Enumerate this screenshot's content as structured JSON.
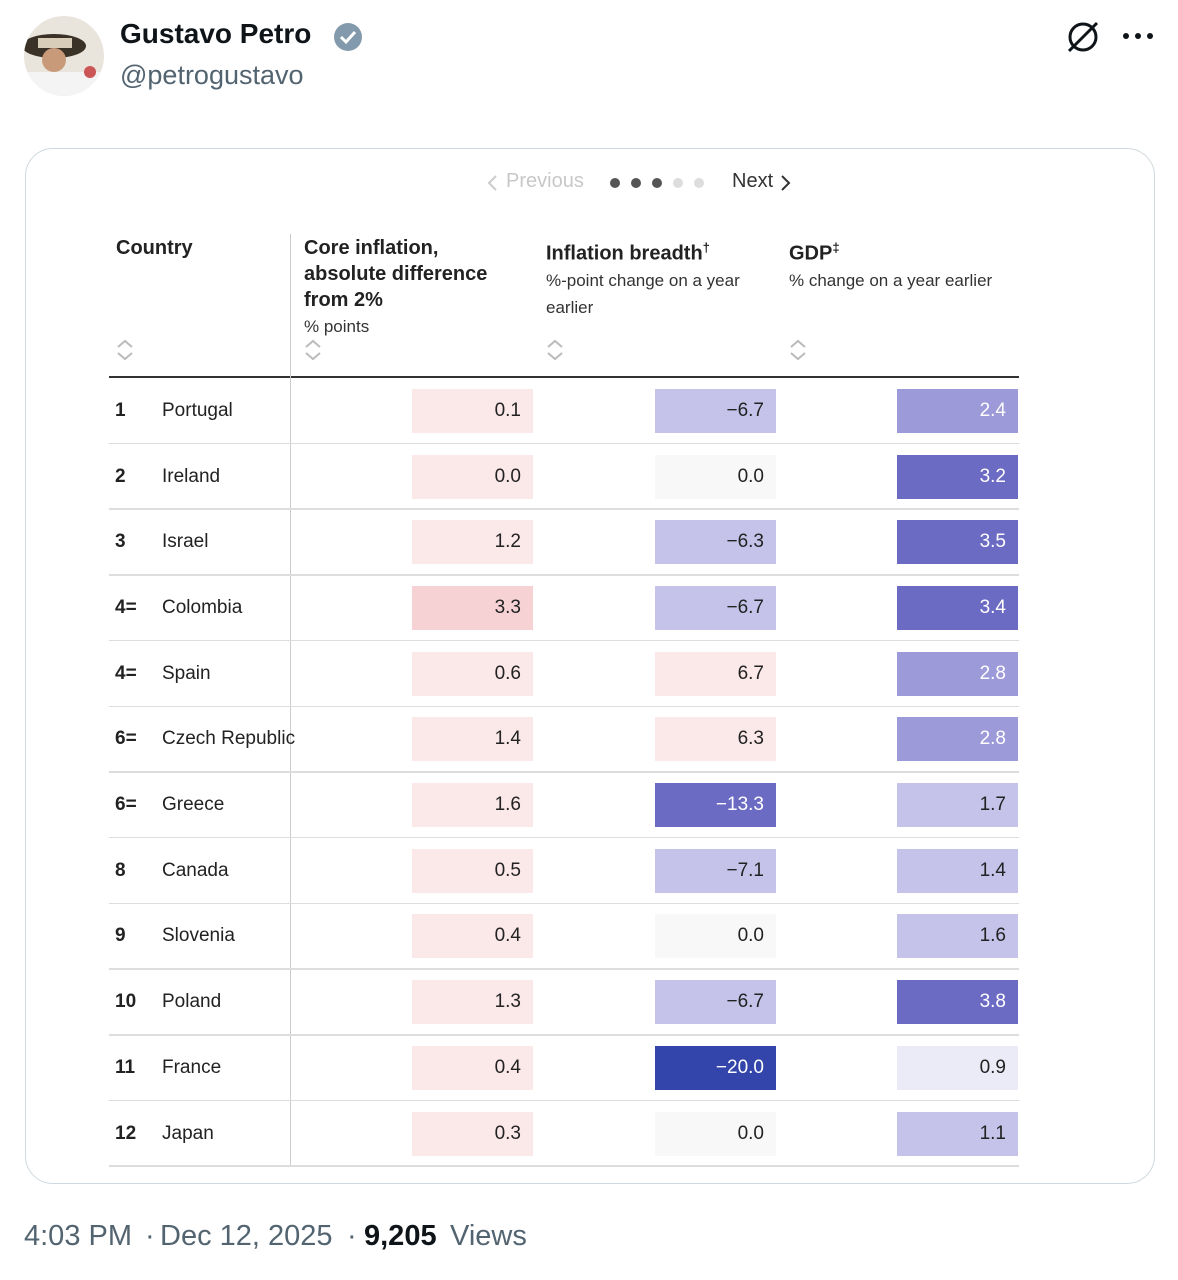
{
  "author": {
    "name": "Gustavo Petro",
    "handle": "@petrogustavo"
  },
  "pager": {
    "previous": "Previous",
    "next": "Next"
  },
  "table": {
    "headers": [
      {
        "title": "Country"
      },
      {
        "title": "Core inflation, absolute difference from 2%",
        "subtitle": "% points"
      },
      {
        "title": "Inflation breadth",
        "mark": "†",
        "subtitle": "%-point change on a year earlier"
      },
      {
        "title": "GDP",
        "mark": "‡",
        "subtitle": "% change on a year earlier"
      }
    ],
    "rows": [
      [
        "1",
        "Portugal",
        "0.1",
        "−6.7",
        "2.4"
      ],
      [
        "2",
        "Ireland",
        "0.0",
        "0.0",
        "3.2"
      ],
      [
        "3",
        "Israel",
        "1.2",
        "−6.3",
        "3.5"
      ],
      [
        "4=",
        "Colombia",
        "3.3",
        "−6.7",
        "3.4"
      ],
      [
        "4=",
        "Spain",
        "0.6",
        "6.7",
        "2.8"
      ],
      [
        "6=",
        "Czech Republic",
        "1.4",
        "6.3",
        "2.8"
      ],
      [
        "6=",
        "Greece",
        "1.6",
        "−13.3",
        "1.7"
      ],
      [
        "8",
        "Canada",
        "0.5",
        "−7.1",
        "1.4"
      ],
      [
        "9",
        "Slovenia",
        "0.4",
        "0.0",
        "1.6"
      ],
      [
        "10",
        "Poland",
        "1.3",
        "−6.7",
        "3.8"
      ],
      [
        "11",
        "France",
        "0.4",
        "−20.0",
        "0.9"
      ],
      [
        "12",
        "Japan",
        "0.3",
        "0.0",
        "1.1"
      ]
    ]
  },
  "footer": {
    "time": "4:03 PM",
    "separator": "·",
    "date": "Dec 12, 2025",
    "views": "9,205",
    "views_label": "Views"
  }
}
